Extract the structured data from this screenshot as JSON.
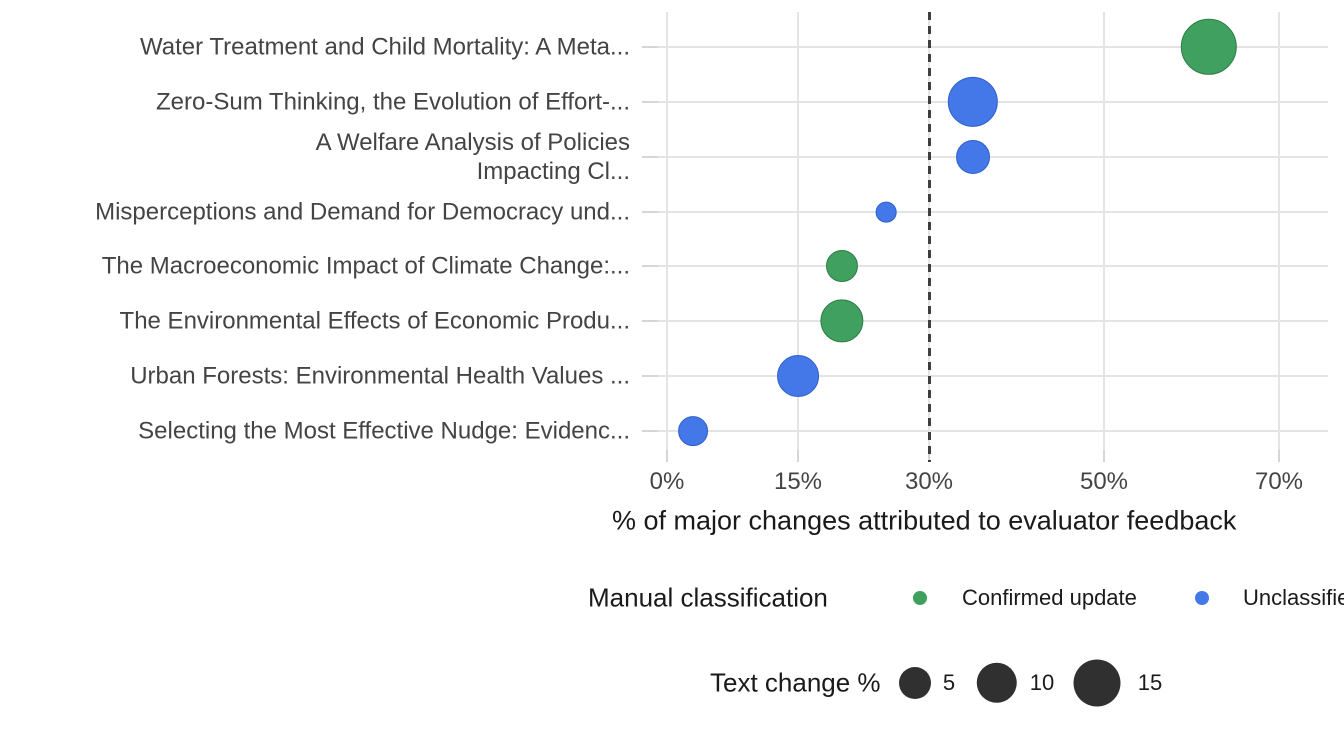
{
  "chart_data": {
    "type": "scatter",
    "subtype": "bubble-dot-plot",
    "title": "",
    "xlabel": "% of major changes attributed to evaluator feedback",
    "ylabel": "",
    "x_tick_values": [
      0,
      15,
      30,
      50,
      70
    ],
    "x_tick_labels": [
      "0%",
      "15%",
      "30%",
      "50%",
      "70%"
    ],
    "x_range": [
      0,
      76
    ],
    "grid": true,
    "legend_position": "bottom",
    "reference_line": {
      "x": 30,
      "style": "dashed",
      "color": "#3f3f3f"
    },
    "size_key": "Text change %",
    "color_key": "Manual classification",
    "points": [
      {
        "paper": "Water Treatment and Child Mortality: A Meta...",
        "label_lines": [
          "Water Treatment and Child Mortality: A Meta..."
        ],
        "pct_major_changes": 62,
        "text_change_pct": 24,
        "classification": "Confirmed update"
      },
      {
        "paper": "Zero-Sum Thinking, the Evolution of Effort-...",
        "label_lines": [
          "Zero-Sum Thinking, the Evolution of Effort-..."
        ],
        "pct_major_changes": 35,
        "text_change_pct": 18,
        "classification": "Unclassified"
      },
      {
        "paper": "A Welfare Analysis of Policies Impacting Cl...",
        "label_lines": [
          "A Welfare Analysis of Policies",
          "Impacting Cl..."
        ],
        "pct_major_changes": 35,
        "text_change_pct": 6,
        "classification": "Unclassified"
      },
      {
        "paper": "Misperceptions and Demand for Democracy und...",
        "label_lines": [
          "Misperceptions and Demand for Democracy und..."
        ],
        "pct_major_changes": 25,
        "text_change_pct": 1,
        "classification": "Unclassified"
      },
      {
        "paper": "The Macroeconomic Impact of Climate Change:...",
        "label_lines": [
          "The Macroeconomic Impact of Climate Change:..."
        ],
        "pct_major_changes": 20,
        "text_change_pct": 5,
        "classification": "Confirmed update"
      },
      {
        "paper": "The Environmental Effects of Economic Produ...",
        "label_lines": [
          "The Environmental Effects of Economic Produ..."
        ],
        "pct_major_changes": 20,
        "text_change_pct": 12,
        "classification": "Confirmed update"
      },
      {
        "paper": "Urban Forests: Environmental Health Values ...",
        "label_lines": [
          "Urban Forests: Environmental Health Values ..."
        ],
        "pct_major_changes": 15,
        "text_change_pct": 11,
        "classification": "Unclassified"
      },
      {
        "paper": "Selecting the Most Effective Nudge: Evidenc...",
        "label_lines": [
          "Selecting the Most Effective Nudge: Evidenc..."
        ],
        "pct_major_changes": 3,
        "text_change_pct": 4,
        "classification": "Unclassified"
      }
    ]
  },
  "legends": {
    "classification": {
      "title": "Manual classification",
      "items": [
        {
          "label": "Confirmed update",
          "color": "#40a05f"
        },
        {
          "label": "Unclassified",
          "color": "#4478e8"
        }
      ]
    },
    "size": {
      "title": "Text change %",
      "values": [
        5,
        10,
        15
      ],
      "circle_color": "#303030"
    }
  },
  "colors": {
    "confirmed_update": "#40a05f",
    "unclassified": "#4478e8",
    "reference_line": "#3f3f3f",
    "gridline": "#e4e4e4",
    "tick_text": "#444444",
    "title_text": "#1a1a1a"
  }
}
